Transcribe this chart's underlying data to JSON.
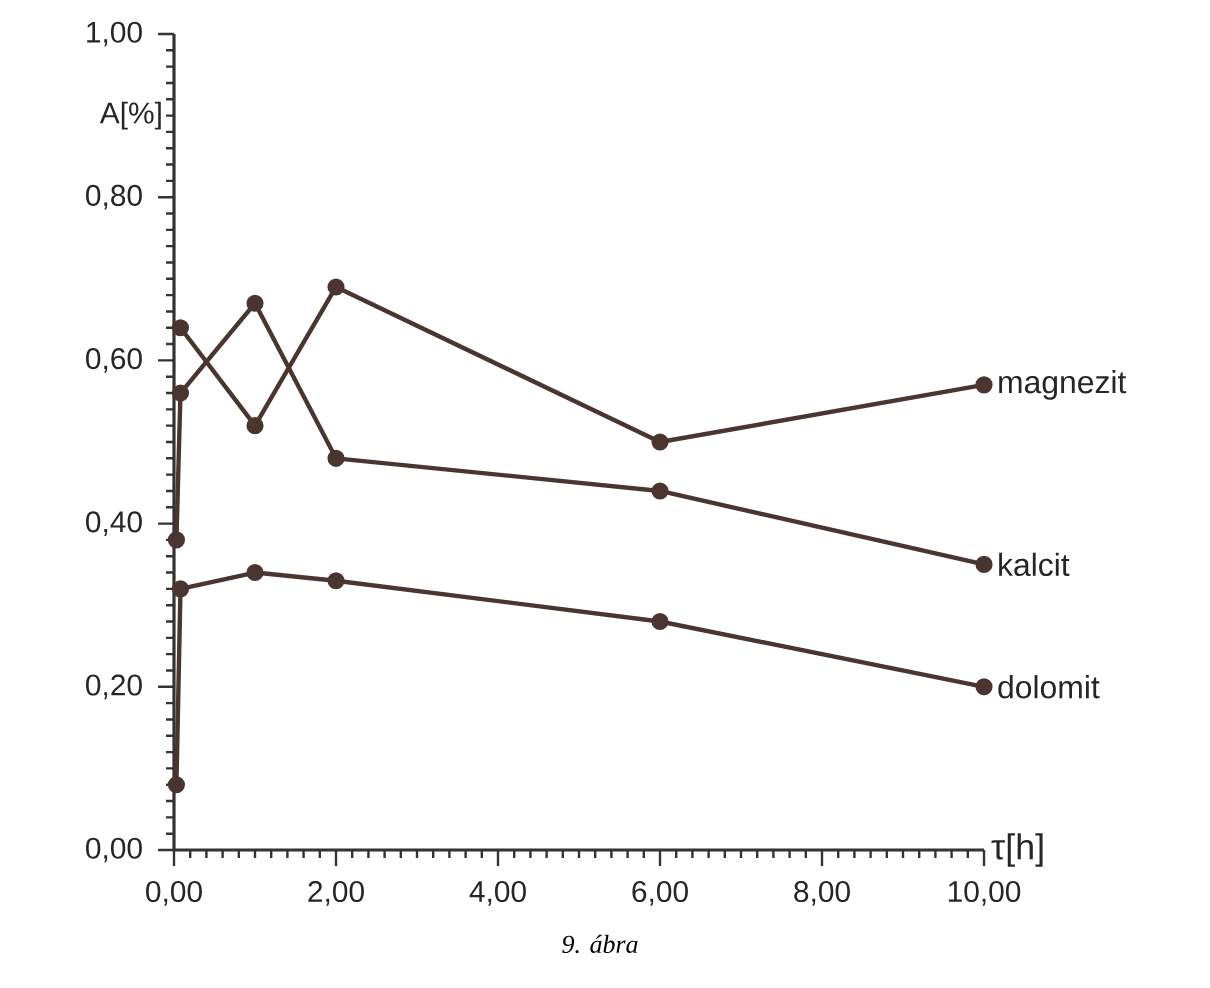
{
  "chart_data": {
    "type": "line",
    "xlabel": "τ[h]",
    "ylabel": "A[%]",
    "annotations": [
      "9. ábra"
    ],
    "xlim": [
      0,
      10
    ],
    "ylim": [
      0,
      1
    ],
    "xticks": [
      {
        "value": 0,
        "label": "0,00"
      },
      {
        "value": 2,
        "label": "2,00"
      },
      {
        "value": 4,
        "label": "4,00"
      },
      {
        "value": 6,
        "label": "6,00"
      },
      {
        "value": 8,
        "label": "8,00"
      },
      {
        "value": 10,
        "label": "10,00"
      }
    ],
    "yticks": [
      {
        "value": 0,
        "label": "0,00"
      },
      {
        "value": 0.2,
        "label": "0,20"
      },
      {
        "value": 0.4,
        "label": "0,40"
      },
      {
        "value": 0.6,
        "label": "0,60"
      },
      {
        "value": 0.8,
        "label": "0,80"
      },
      {
        "value": 1,
        "label": "1,00"
      }
    ],
    "marker": "circle",
    "line_style": "solid",
    "grid": false,
    "legend": false,
    "series": [
      {
        "name": "magnezit",
        "color": "#4a3530",
        "x": [
          0.08,
          1,
          2,
          6,
          10
        ],
        "values": [
          0.64,
          0.52,
          0.69,
          0.5,
          0.57
        ]
      },
      {
        "name": "kalcit",
        "color": "#4a3530",
        "x": [
          0.03,
          0.08,
          1,
          2,
          6,
          10
        ],
        "values": [
          0.38,
          0.56,
          0.67,
          0.48,
          0.44,
          0.35
        ]
      },
      {
        "name": "dolomit",
        "color": "#4a3530",
        "x": [
          0.03,
          0.08,
          1,
          2,
          6,
          10
        ],
        "values": [
          0.08,
          0.32,
          0.34,
          0.33,
          0.28,
          0.2
        ]
      }
    ]
  }
}
